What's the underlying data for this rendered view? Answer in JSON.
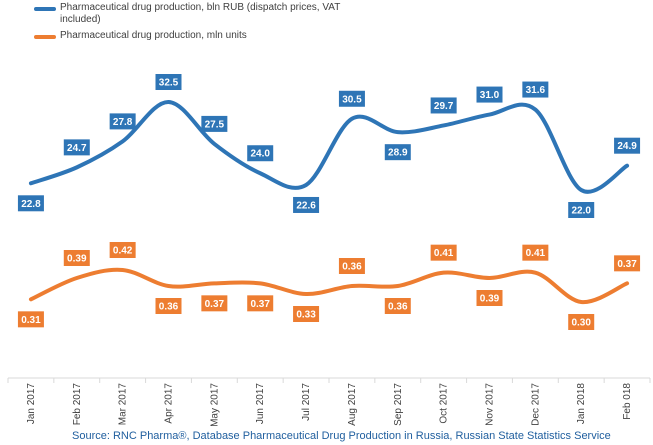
{
  "chart_data": {
    "type": "line",
    "categories": [
      "Jan 2017",
      "Feb 2017",
      "Mar 2017",
      "Apr 2017",
      "May 2017",
      "Jun 2017",
      "Jul 2017",
      "Aug 2017",
      "Sep 2017",
      "Oct 2017",
      "Nov 2017",
      "Dec 2017",
      "Jan 2018",
      "Feb 018"
    ],
    "series": [
      {
        "name": "Pharmaceutical drug production, bln RUB (dispatch prices, VAT included)",
        "color": "#2e75b6",
        "values": [
          22.8,
          24.7,
          27.8,
          32.5,
          27.5,
          24.0,
          22.6,
          30.5,
          28.9,
          29.7,
          31.0,
          31.6,
          22.0,
          24.9
        ],
        "labels": [
          "22.8",
          "24.7",
          "27.8",
          "32.5",
          "27.5",
          "24.0",
          "22.6",
          "30.5",
          "28.9",
          "29.7",
          "31.0",
          "31.6",
          "22.0",
          "24.9"
        ]
      },
      {
        "name": "Pharmaceutical drug production, mln units",
        "color": "#ed7d31",
        "values": [
          0.31,
          0.39,
          0.42,
          0.36,
          0.37,
          0.37,
          0.33,
          0.36,
          0.36,
          0.41,
          0.39,
          0.41,
          0.3,
          0.37
        ],
        "labels": [
          "0.31",
          "0.39",
          "0.42",
          "0.36",
          "0.37",
          "0.37",
          "0.33",
          "0.36",
          "0.36",
          "0.41",
          "0.39",
          "0.41",
          "0.30",
          "0.37"
        ]
      }
    ],
    "grid": false,
    "legend_position": "top-left"
  },
  "source": "Source: RNC Pharma®, Database Pharmaceutical Drug Production in Russia, Russian State Statistics Service"
}
